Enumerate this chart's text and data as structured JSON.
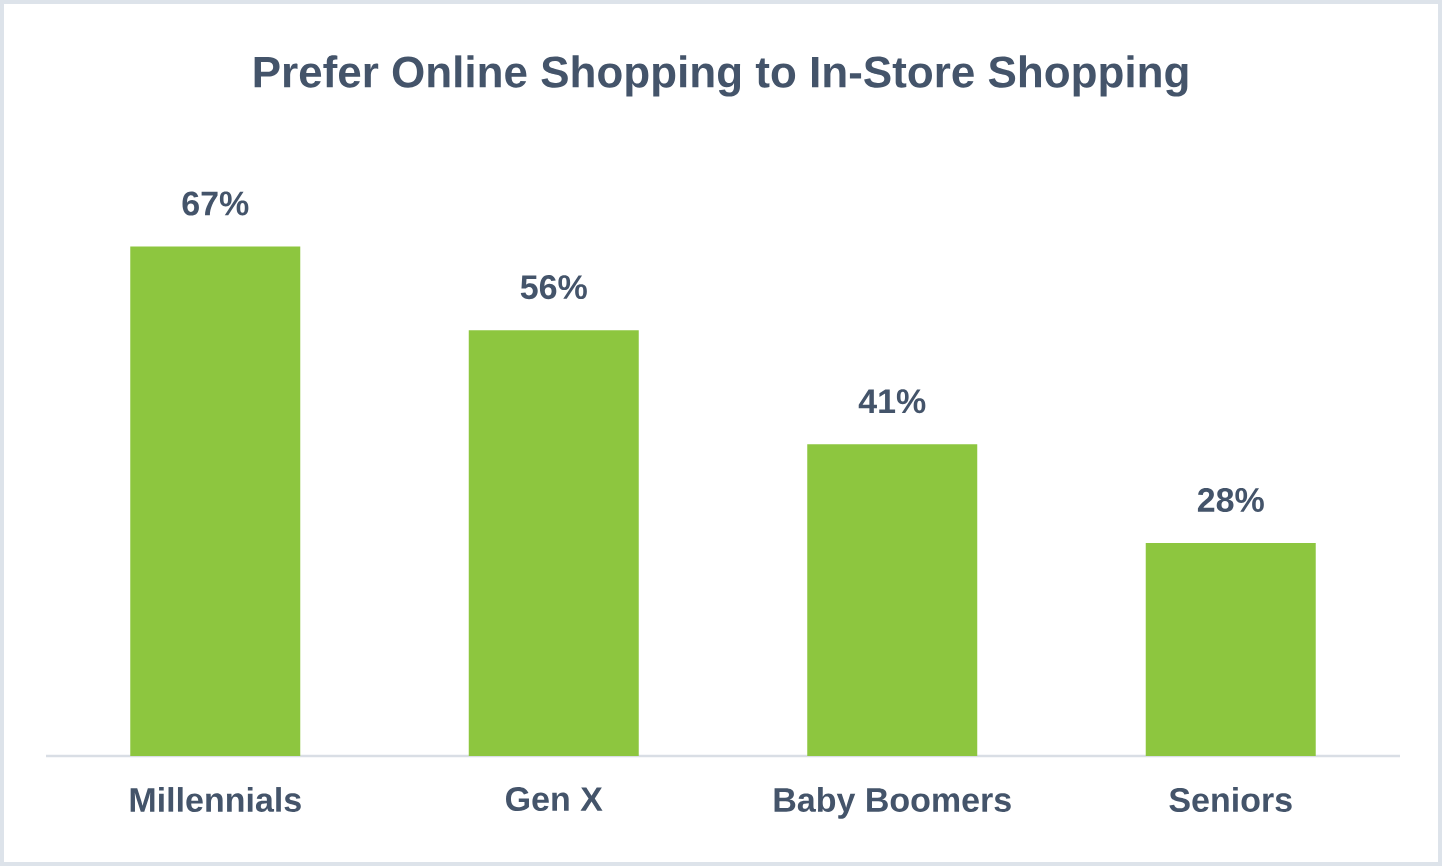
{
  "chart_data": {
    "type": "bar",
    "title": "Prefer Online Shopping to In-Store Shopping",
    "categories": [
      "Millennials",
      "Gen X",
      "Baby Boomers",
      "Seniors"
    ],
    "values": [
      67,
      56,
      41,
      28
    ],
    "value_labels": [
      "67%",
      "56%",
      "41%",
      "28%"
    ],
    "color": "#8dc63f"
  }
}
